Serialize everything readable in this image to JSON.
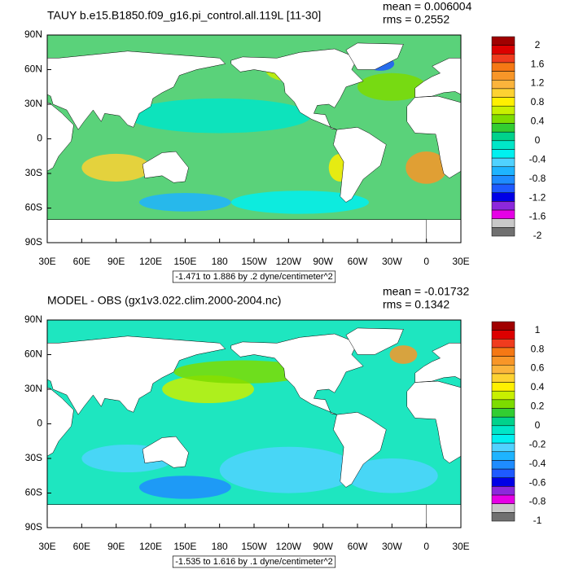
{
  "chart_data": [
    {
      "type": "contour",
      "title": "TAUY b.e15.B1850.f09_g16.pi_control.all.119L [11-30]",
      "mean": "mean = 0.006004",
      "rms": "rms = 0.2552",
      "info": "-1.471 to 1.886 by .2 dyne/centimeter^2",
      "xlim": [
        30,
        390
      ],
      "ylim": [
        -90,
        90
      ],
      "yticks": [
        {
          "value": 90,
          "label": "90N"
        },
        {
          "value": 60,
          "label": "60N"
        },
        {
          "value": 30,
          "label": "30N"
        },
        0,
        {
          "value": -30,
          "label": "30S"
        },
        {
          "value": -60,
          "label": "60S"
        },
        {
          "value": -90,
          "label": "90S"
        }
      ],
      "xticks": [
        {
          "value": 30,
          "label": "30E"
        },
        {
          "value": 60,
          "label": "60E"
        },
        {
          "value": 90,
          "label": "90E"
        },
        {
          "value": 120,
          "label": "120E"
        },
        {
          "value": 150,
          "label": "150E"
        },
        180,
        {
          "value": 210,
          "label": "150W"
        },
        {
          "value": 240,
          "label": "120W"
        },
        {
          "value": 270,
          "label": "90W"
        },
        {
          "value": 300,
          "label": "60W"
        },
        {
          "value": 330,
          "label": "30W"
        },
        {
          "value": 360,
          "label": "0"
        },
        {
          "value": 390,
          "label": "30E"
        }
      ],
      "colorbar_labels": [
        2,
        1.6,
        1.2,
        0.8,
        0.4,
        0,
        -0.4,
        -0.8,
        -1.2,
        -1.6,
        -2
      ],
      "colors": [
        "#a00000",
        "#dc0000",
        "#f03c1e",
        "#f57814",
        "#f89628",
        "#fbb43c",
        "#fdd232",
        "#fff000",
        "#c8f000",
        "#7ddc00",
        "#32cd32",
        "#00d28c",
        "#00e6c8",
        "#00f0f0",
        "#50d2ff",
        "#1eb4ff",
        "#1e8cff",
        "#1e5aff",
        "#0000e6",
        "#8c28dc",
        "#e600e6",
        "#c8c8c8",
        "#707070"
      ]
    },
    {
      "type": "contour",
      "title": "MODEL - OBS (gx1v3.022.clim.2000-2004.nc)",
      "mean": "mean = -0.01732",
      "rms": "rms = 0.1342",
      "info": "-1.535 to 1.616 by .1 dyne/centimeter^2",
      "xlim": [
        30,
        390
      ],
      "ylim": [
        -90,
        90
      ],
      "yticks": [
        {
          "value": 90,
          "label": "90N"
        },
        {
          "value": 60,
          "label": "60N"
        },
        {
          "value": 30,
          "label": "30N"
        },
        0,
        {
          "value": -30,
          "label": "30S"
        },
        {
          "value": -60,
          "label": "60S"
        },
        {
          "value": -90,
          "label": "90S"
        }
      ],
      "xticks": [
        {
          "value": 30,
          "label": "30E"
        },
        {
          "value": 60,
          "label": "60E"
        },
        {
          "value": 90,
          "label": "90E"
        },
        {
          "value": 120,
          "label": "120E"
        },
        {
          "value": 150,
          "label": "150E"
        },
        180,
        {
          "value": 210,
          "label": "150W"
        },
        {
          "value": 240,
          "label": "120W"
        },
        {
          "value": 270,
          "label": "90W"
        },
        {
          "value": 300,
          "label": "60W"
        },
        {
          "value": 330,
          "label": "30W"
        },
        {
          "value": 360,
          "label": "0"
        },
        {
          "value": 390,
          "label": "30E"
        }
      ],
      "colorbar_labels": [
        1,
        0.8,
        0.6,
        0.4,
        0.2,
        0,
        -0.2,
        -0.4,
        -0.6,
        -0.8,
        -1
      ],
      "colors": [
        "#a00000",
        "#dc0000",
        "#f03c1e",
        "#f57814",
        "#f89628",
        "#fbb43c",
        "#fdd232",
        "#fff000",
        "#c8f000",
        "#7ddc00",
        "#32cd32",
        "#00d28c",
        "#00e6c8",
        "#00f0f0",
        "#50d2ff",
        "#1eb4ff",
        "#1e8cff",
        "#1e5aff",
        "#0000e6",
        "#8c28dc",
        "#e600e6",
        "#c8c8c8",
        "#707070"
      ]
    }
  ]
}
